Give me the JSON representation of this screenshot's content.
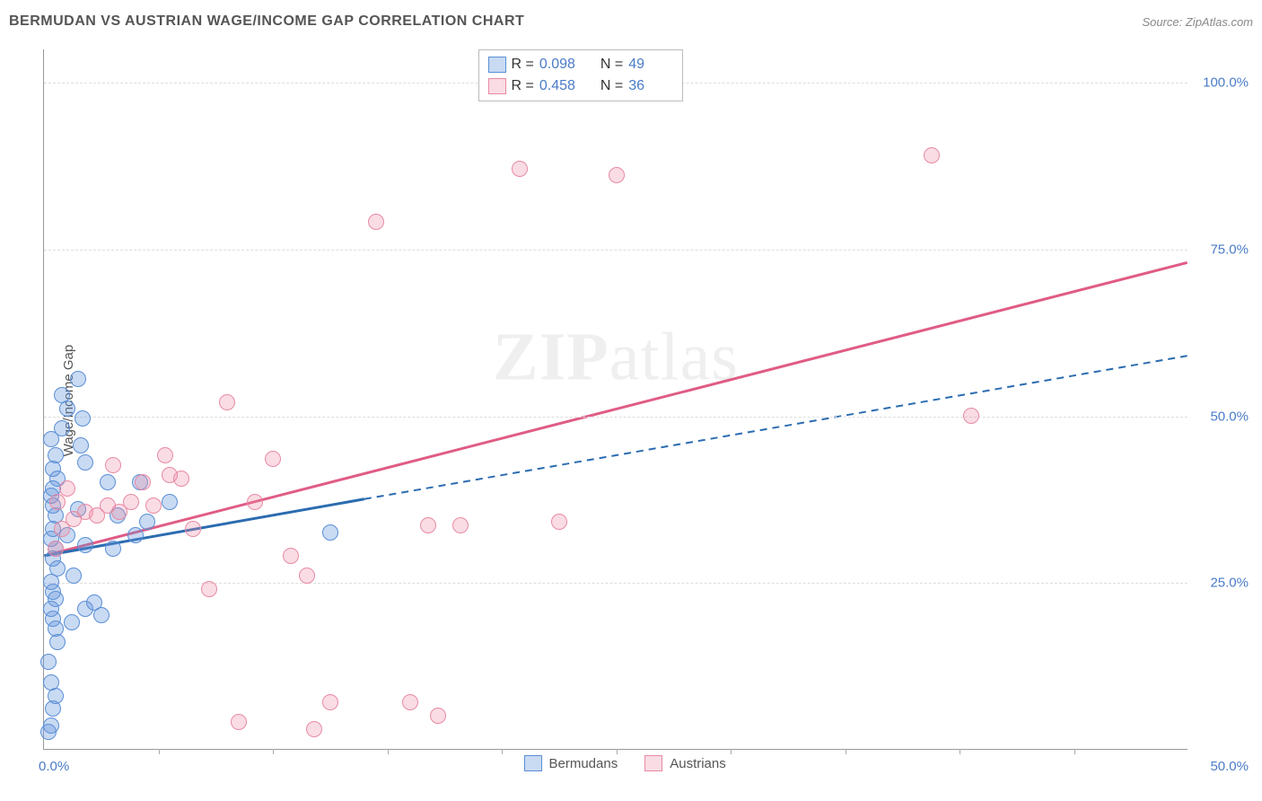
{
  "header": {
    "title": "BERMUDAN VS AUSTRIAN WAGE/INCOME GAP CORRELATION CHART",
    "source": "Source: ZipAtlas.com"
  },
  "watermark": {
    "zip": "ZIP",
    "rest": "atlas"
  },
  "chart": {
    "type": "scatter",
    "xlim": [
      0,
      50
    ],
    "ylim": [
      0,
      105
    ],
    "y_axis_title": "Wage/Income Gap",
    "x_left_label": "0.0%",
    "x_right_label": "50.0%",
    "y_ticks": [
      {
        "value": 25,
        "label": "25.0%"
      },
      {
        "value": 50,
        "label": "50.0%"
      },
      {
        "value": 75,
        "label": "75.0%"
      },
      {
        "value": 100,
        "label": "100.0%"
      }
    ],
    "x_ticks": [
      5,
      10,
      15,
      20,
      25,
      30,
      35,
      40,
      45
    ],
    "grid_color": "#dddddd",
    "colors": {
      "blue_fill": "rgba(100,150,220,0.35)",
      "blue_stroke": "#5a8fd6",
      "pink_fill": "rgba(240,140,165,0.30)",
      "pink_stroke": "#e88aa3",
      "blue_line": "#2b6cb0",
      "pink_line": "#e05c85",
      "tick_label": "#4a7bc8"
    },
    "series": [
      {
        "name": "Bermudans",
        "color_key": "blue",
        "points": [
          [
            0.2,
            2.5
          ],
          [
            0.3,
            3.5
          ],
          [
            0.4,
            6
          ],
          [
            0.5,
            8
          ],
          [
            0.3,
            10
          ],
          [
            0.2,
            13
          ],
          [
            0.6,
            16
          ],
          [
            0.5,
            18
          ],
          [
            0.4,
            19.5
          ],
          [
            1.2,
            19
          ],
          [
            0.3,
            21
          ],
          [
            0.5,
            22.5
          ],
          [
            0.4,
            23.5
          ],
          [
            1.8,
            21
          ],
          [
            2.5,
            20
          ],
          [
            0.3,
            25
          ],
          [
            0.6,
            27
          ],
          [
            0.4,
            28.5
          ],
          [
            0.5,
            30
          ],
          [
            0.3,
            31.5
          ],
          [
            0.4,
            33
          ],
          [
            1.0,
            32
          ],
          [
            1.8,
            30.5
          ],
          [
            3.0,
            30
          ],
          [
            4.0,
            32
          ],
          [
            0.5,
            35
          ],
          [
            0.4,
            36.5
          ],
          [
            1.5,
            36
          ],
          [
            3.2,
            35
          ],
          [
            4.5,
            34
          ],
          [
            5.5,
            37
          ],
          [
            0.3,
            38
          ],
          [
            2.8,
            40
          ],
          [
            4.2,
            40
          ],
          [
            0.6,
            40.5
          ],
          [
            0.4,
            42
          ],
          [
            1.8,
            43
          ],
          [
            0.5,
            44
          ],
          [
            1.6,
            45.5
          ],
          [
            0.3,
            46.5
          ],
          [
            0.8,
            48
          ],
          [
            1.7,
            49.5
          ],
          [
            1.0,
            51
          ],
          [
            0.8,
            53
          ],
          [
            1.5,
            55.5
          ],
          [
            0.4,
            39
          ],
          [
            2.2,
            22
          ],
          [
            1.3,
            26
          ],
          [
            12.5,
            32.5
          ]
        ]
      },
      {
        "name": "Austrians",
        "color_key": "pink",
        "points": [
          [
            0.5,
            30
          ],
          [
            0.8,
            33
          ],
          [
            1.3,
            34.5
          ],
          [
            1.8,
            35.5
          ],
          [
            2.3,
            35
          ],
          [
            2.8,
            36.5
          ],
          [
            3.3,
            35.5
          ],
          [
            3.8,
            37
          ],
          [
            4.3,
            40
          ],
          [
            4.8,
            36.5
          ],
          [
            5.5,
            41
          ],
          [
            6.0,
            40.5
          ],
          [
            6.5,
            33
          ],
          [
            7.2,
            24
          ],
          [
            8.0,
            52
          ],
          [
            8.5,
            4
          ],
          [
            9.2,
            37
          ],
          [
            10.0,
            43.5
          ],
          [
            10.8,
            29
          ],
          [
            11.5,
            26
          ],
          [
            11.8,
            3
          ],
          [
            12.5,
            7
          ],
          [
            14.5,
            79
          ],
          [
            16.0,
            7
          ],
          [
            16.8,
            33.5
          ],
          [
            17.2,
            5
          ],
          [
            18.2,
            33.5
          ],
          [
            20.8,
            87
          ],
          [
            22.5,
            34
          ],
          [
            25.0,
            86
          ],
          [
            38.8,
            89
          ],
          [
            40.5,
            50
          ],
          [
            5.3,
            44
          ],
          [
            3.0,
            42.5
          ],
          [
            1.0,
            39
          ],
          [
            0.6,
            37
          ]
        ]
      }
    ],
    "regression": {
      "blue": {
        "solid_from": [
          0,
          29
        ],
        "solid_to": [
          14,
          37.5
        ],
        "dashed_to": [
          50,
          59
        ]
      },
      "pink": {
        "from": [
          0,
          29
        ],
        "to": [
          50,
          73
        ]
      }
    },
    "top_legend": {
      "rows": [
        {
          "swatch": "blue",
          "r_label": "R = ",
          "r_val": "0.098",
          "n_label": "N = ",
          "n_val": "49"
        },
        {
          "swatch": "pink",
          "r_label": "R = ",
          "r_val": "0.458",
          "n_label": "N = ",
          "n_val": "36"
        }
      ]
    },
    "bottom_legend": [
      {
        "swatch": "blue",
        "label": "Bermudans"
      },
      {
        "swatch": "pink",
        "label": "Austrians"
      }
    ]
  }
}
